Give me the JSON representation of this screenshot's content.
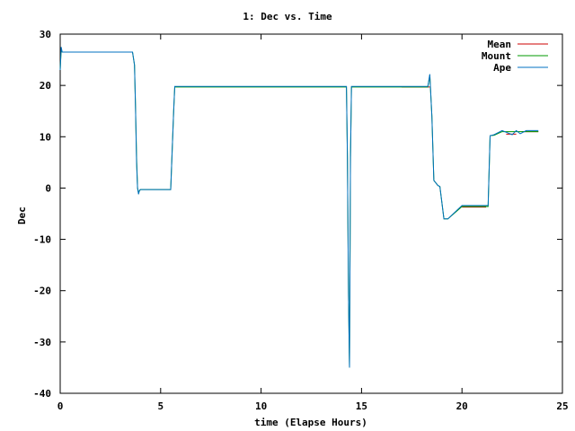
{
  "chart_data": {
    "type": "line",
    "title": "1: Dec vs. Time",
    "xlabel": "time (Elapse Hours)",
    "ylabel": "Dec",
    "xlim": [
      0,
      25
    ],
    "ylim": [
      -40,
      30
    ],
    "xticks": [
      0,
      5,
      10,
      15,
      20,
      25
    ],
    "yticks": [
      -40,
      -30,
      -20,
      -10,
      0,
      10,
      20,
      30
    ],
    "grid": false,
    "legend_position": "top-right",
    "series": [
      {
        "name": "Mean",
        "color": "#cc0000",
        "x": [
          0.1,
          3.6,
          null,
          17.0,
          18.4,
          null,
          20.0,
          21.2,
          null,
          22.2,
          22.7,
          null,
          23.0,
          23.8
        ],
        "y": [
          26.5,
          26.5,
          null,
          19.7,
          19.7,
          null,
          -3.7,
          -3.7,
          null,
          10.5,
          10.5,
          null,
          11.0,
          11.0
        ]
      },
      {
        "name": "Mount",
        "color": "#009900",
        "x": [
          0.0,
          0.05,
          0.1,
          0.2,
          3.6,
          3.7,
          3.75,
          3.8,
          3.85,
          3.9,
          3.95,
          4.0,
          5.5,
          5.65,
          5.7,
          14.25,
          14.3,
          14.35,
          14.4,
          14.45,
          14.5,
          14.6,
          14.7,
          18.3,
          18.4,
          18.5,
          18.6,
          18.7,
          18.8,
          18.9,
          19.1,
          19.3,
          20.0,
          21.3,
          21.4,
          21.6,
          22.0,
          22.5,
          22.9,
          23.2,
          23.8
        ],
        "y": [
          23.0,
          27.0,
          26.5,
          26.5,
          26.5,
          24.0,
          16.0,
          6.0,
          0.0,
          -1.0,
          -0.5,
          -0.3,
          -0.3,
          15.0,
          19.7,
          19.7,
          6.0,
          -21.0,
          -35.0,
          6.0,
          19.7,
          19.7,
          19.7,
          19.7,
          22.0,
          14.0,
          1.5,
          1.0,
          0.5,
          0.3,
          -6.0,
          -6.0,
          -3.6,
          -3.6,
          10.2,
          10.3,
          11.0,
          11.0,
          11.0,
          11.0,
          11.0
        ]
      },
      {
        "name": "Ape",
        "color": "#0070c0",
        "x": [
          0.0,
          0.05,
          0.1,
          0.2,
          3.6,
          3.7,
          3.75,
          3.8,
          3.85,
          3.9,
          3.95,
          4.0,
          5.5,
          5.65,
          5.7,
          14.25,
          14.3,
          14.35,
          14.4,
          14.45,
          14.5,
          14.6,
          14.7,
          18.3,
          18.4,
          18.5,
          18.6,
          18.7,
          18.8,
          18.9,
          19.1,
          19.3,
          20.0,
          21.3,
          21.4,
          21.6,
          22.0,
          22.5,
          22.7,
          22.9,
          23.2,
          23.8
        ],
        "y": [
          23.0,
          27.5,
          26.5,
          26.5,
          26.5,
          24.0,
          16.0,
          5.0,
          0.0,
          -1.2,
          -0.4,
          -0.3,
          -0.3,
          15.0,
          19.8,
          19.8,
          6.0,
          -21.0,
          -35.0,
          6.0,
          19.8,
          19.8,
          19.8,
          19.8,
          22.2,
          14.0,
          1.5,
          1.0,
          0.5,
          0.3,
          -6.0,
          -6.0,
          -3.4,
          -3.4,
          10.2,
          10.4,
          11.2,
          10.4,
          11.2,
          10.6,
          11.2,
          11.2
        ]
      }
    ]
  }
}
